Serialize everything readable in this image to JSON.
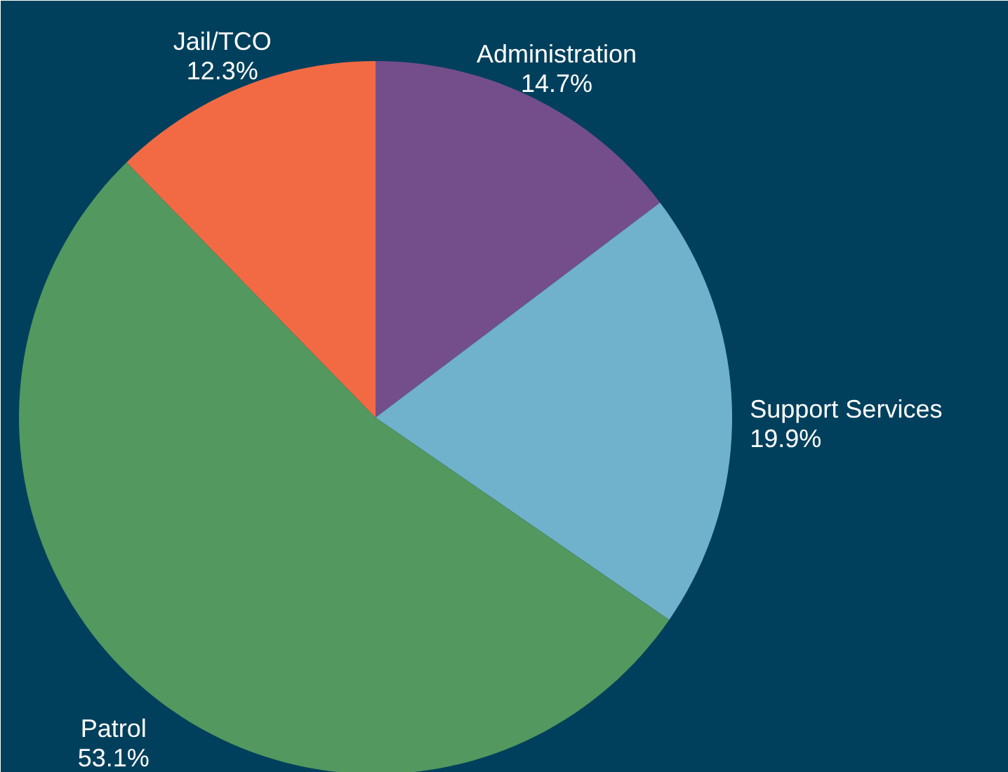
{
  "chart_data": {
    "type": "pie",
    "categories": [
      "Administration",
      "Support Services",
      "Patrol",
      "Jail/TCO"
    ],
    "values": [
      14.7,
      19.9,
      53.1,
      12.3
    ],
    "value_labels": [
      "14.7%",
      "19.9%",
      "53.1%",
      "12.3%"
    ],
    "colors": [
      "#744e8a",
      "#70b1cb",
      "#52985f",
      "#f26a44"
    ]
  }
}
